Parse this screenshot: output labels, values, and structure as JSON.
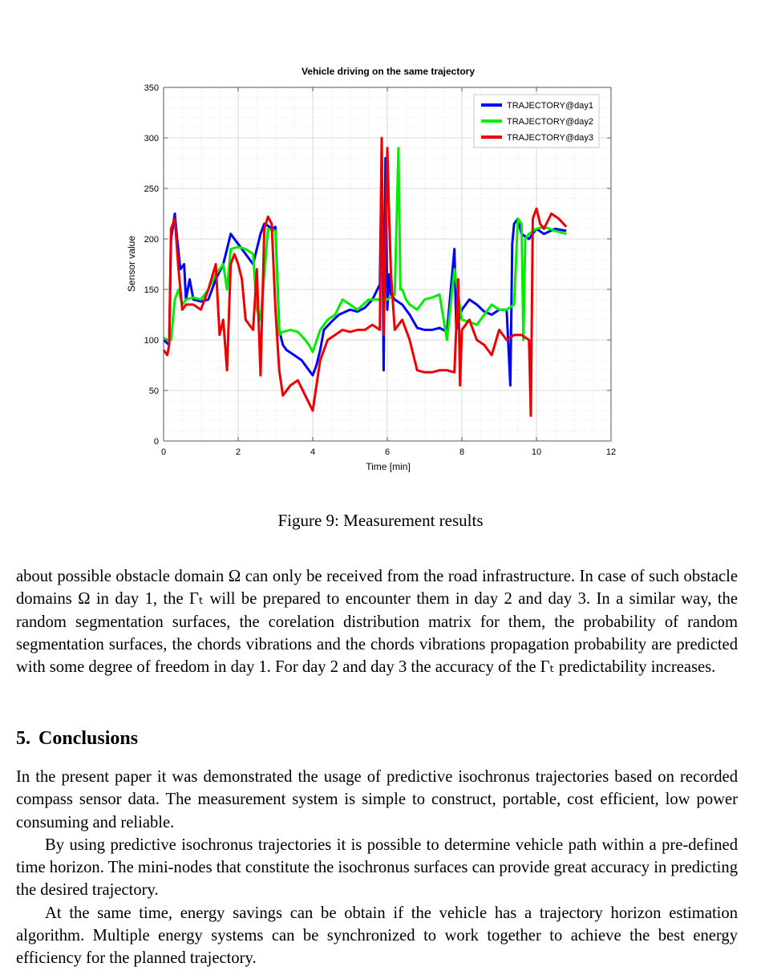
{
  "figure": {
    "caption": "Figure 9: Measurement results"
  },
  "chart_data": {
    "type": "line",
    "title": "Vehicle driving on the same trajectory",
    "xlabel": "Time [min]",
    "ylabel": "Sensor value",
    "xlim": [
      0,
      12
    ],
    "ylim": [
      0,
      350
    ],
    "xticks": [
      0,
      2,
      4,
      6,
      8,
      10,
      12
    ],
    "yticks": [
      0,
      50,
      100,
      150,
      200,
      250,
      300,
      350
    ],
    "grid": true,
    "minor_grid": true,
    "legend_position": "top-right",
    "series": [
      {
        "name": "TRAJECTORY@day1",
        "color": "#0000ff",
        "x": [
          0,
          0.15,
          0.2,
          0.3,
          0.35,
          0.45,
          0.55,
          0.6,
          0.7,
          0.8,
          1.0,
          1.2,
          1.4,
          1.6,
          1.7,
          1.8,
          1.9,
          2.0,
          2.2,
          2.4,
          2.6,
          2.7,
          2.8,
          2.9,
          3.0,
          3.1,
          3.2,
          3.3,
          3.5,
          3.7,
          3.9,
          4.0,
          4.1,
          4.2,
          4.3,
          4.5,
          4.7,
          5.0,
          5.2,
          5.4,
          5.6,
          5.8,
          5.85,
          5.9,
          5.95,
          6.0,
          6.05,
          6.1,
          6.2,
          6.4,
          6.6,
          6.8,
          7.0,
          7.2,
          7.4,
          7.6,
          7.8,
          7.85,
          7.9,
          8.0,
          8.2,
          8.4,
          8.6,
          8.8,
          9.0,
          9.2,
          9.3,
          9.35,
          9.4,
          9.5,
          9.6,
          9.8,
          10.0,
          10.2,
          10.5,
          10.8
        ],
        "y": [
          100,
          95,
          200,
          225,
          205,
          170,
          175,
          140,
          160,
          140,
          138,
          140,
          160,
          175,
          190,
          205,
          200,
          195,
          185,
          175,
          205,
          215,
          213,
          210,
          212,
          110,
          95,
          90,
          85,
          80,
          70,
          65,
          75,
          90,
          110,
          118,
          125,
          130,
          128,
          132,
          140,
          155,
          290,
          70,
          280,
          130,
          165,
          145,
          140,
          135,
          125,
          112,
          110,
          110,
          112,
          108,
          190,
          110,
          118,
          130,
          140,
          135,
          128,
          125,
          130,
          130,
          55,
          195,
          215,
          220,
          205,
          200,
          210,
          205,
          210,
          208
        ]
      },
      {
        "name": "TRAJECTORY@day2",
        "color": "#00ee00",
        "x": [
          0,
          0.1,
          0.2,
          0.3,
          0.4,
          0.5,
          0.6,
          0.8,
          1.0,
          1.2,
          1.4,
          1.6,
          1.7,
          1.8,
          2.0,
          2.2,
          2.4,
          2.5,
          2.6,
          2.8,
          3.0,
          3.1,
          3.2,
          3.4,
          3.6,
          3.8,
          3.9,
          4.0,
          4.2,
          4.4,
          4.6,
          4.8,
          5.0,
          5.2,
          5.5,
          5.8,
          6.0,
          6.2,
          6.3,
          6.35,
          6.4,
          6.5,
          6.6,
          6.8,
          7.0,
          7.2,
          7.4,
          7.6,
          7.8,
          8.0,
          8.2,
          8.4,
          8.6,
          8.8,
          9.0,
          9.2,
          9.4,
          9.5,
          9.6,
          9.65,
          9.7,
          9.8,
          10.0,
          10.2,
          10.5,
          10.8
        ],
        "y": [
          102,
          100,
          100,
          140,
          150,
          135,
          140,
          142,
          140,
          150,
          165,
          175,
          150,
          190,
          192,
          190,
          185,
          130,
          120,
          210,
          208,
          105,
          108,
          110,
          108,
          100,
          95,
          88,
          110,
          120,
          125,
          140,
          135,
          130,
          140,
          140,
          140,
          145,
          290,
          150,
          150,
          140,
          135,
          130,
          140,
          142,
          145,
          100,
          170,
          120,
          118,
          115,
          125,
          135,
          130,
          130,
          135,
          220,
          215,
          100,
          200,
          205,
          210,
          212,
          208,
          205
        ]
      },
      {
        "name": "TRAJECTORY@day3",
        "color": "#ee0000",
        "x": [
          0,
          0.1,
          0.15,
          0.2,
          0.3,
          0.4,
          0.5,
          0.6,
          0.8,
          1.0,
          1.2,
          1.4,
          1.5,
          1.6,
          1.7,
          1.8,
          1.9,
          2.0,
          2.1,
          2.2,
          2.4,
          2.5,
          2.6,
          2.7,
          2.8,
          2.9,
          3.0,
          3.1,
          3.2,
          3.4,
          3.6,
          3.8,
          4.0,
          4.2,
          4.4,
          4.6,
          4.8,
          5.0,
          5.2,
          5.4,
          5.6,
          5.8,
          5.85,
          5.9,
          6.0,
          6.05,
          6.1,
          6.2,
          6.4,
          6.6,
          6.8,
          7.0,
          7.2,
          7.4,
          7.6,
          7.8,
          7.9,
          7.95,
          8.0,
          8.2,
          8.4,
          8.6,
          8.8,
          9.0,
          9.2,
          9.4,
          9.6,
          9.8,
          9.85,
          9.9,
          10.0,
          10.1,
          10.2,
          10.4,
          10.6,
          10.8
        ],
        "y": [
          90,
          85,
          95,
          210,
          220,
          170,
          130,
          135,
          135,
          130,
          150,
          175,
          105,
          120,
          70,
          175,
          185,
          175,
          160,
          120,
          110,
          170,
          65,
          210,
          222,
          215,
          130,
          70,
          45,
          55,
          60,
          45,
          30,
          80,
          100,
          105,
          110,
          108,
          110,
          110,
          115,
          110,
          300,
          105,
          290,
          220,
          165,
          110,
          120,
          100,
          70,
          68,
          68,
          70,
          70,
          68,
          160,
          55,
          110,
          120,
          100,
          95,
          85,
          110,
          100,
          105,
          105,
          100,
          25,
          220,
          230,
          215,
          210,
          225,
          220,
          212
        ]
      }
    ]
  },
  "body": {
    "paragraph_before": "about possible obstacle domain Ω can only be received from the road infrastructure. In case of such obstacle domains Ω in day 1, the Γₜ will be prepared to encounter them in day 2 and day 3. In a similar way, the random segmentation surfaces, the corelation distribution matrix for them, the probability of random segmentation surfaces, the chords vibrations and the chords vibrations propagation probability are predicted with some degree of freedom in day 1. For day 2 and day 3 the accuracy of the Γₜ predictability increases.",
    "section_number": "5.",
    "section_title": "Conclusions",
    "conclusion_paragraphs": [
      "In the present paper it was demonstrated the usage of predictive isochronus trajectories based on recorded compass sensor data. The measurement system is simple to construct, portable, cost efficient, low power consuming and reliable.",
      "By using predictive isochronus trajectories it is possible to determine vehicle path within a pre-defined time horizon. The mini-nodes that constitute the isochronus surfaces can provide great accuracy in predicting the desired trajectory.",
      "At the same time, energy savings can be obtain if the vehicle has a trajectory horizon estimation algorithm. Multiple energy systems can be synchronized to work together to achieve the best energy efficiency for the planned trajectory."
    ]
  }
}
